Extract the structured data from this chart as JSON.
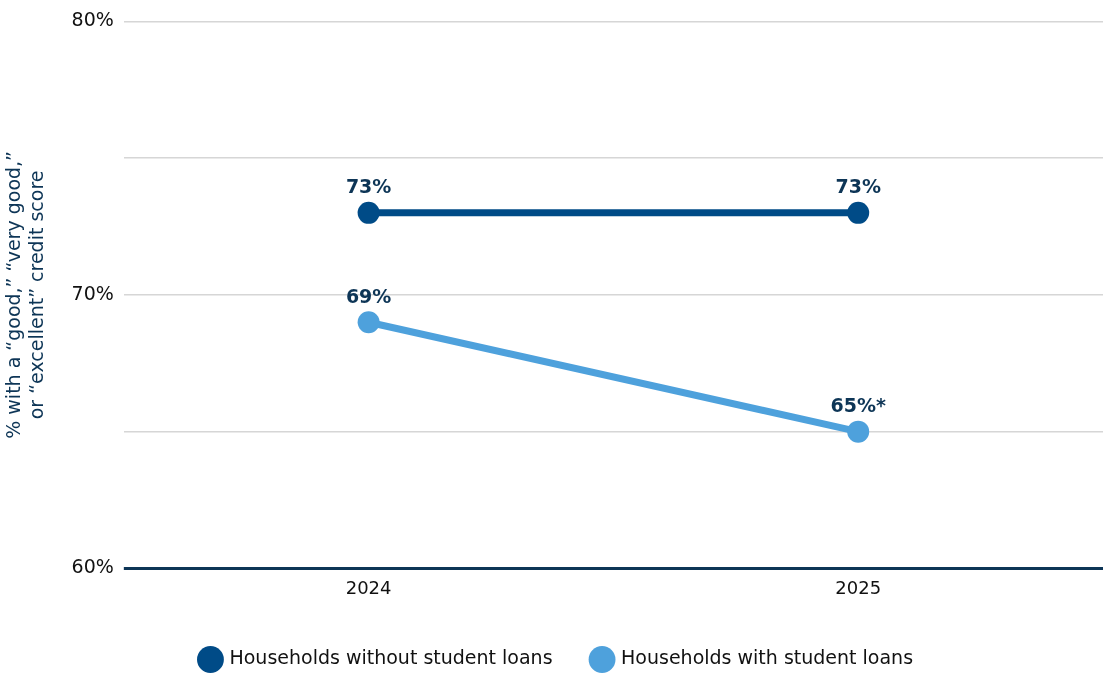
{
  "chart_data": {
    "type": "line",
    "ylabel": "% with a “good,” “very good,” or “excellent” credit score",
    "categories": [
      "2024",
      "2025"
    ],
    "series": [
      {
        "name": "Households without student loans",
        "color": "#004b87",
        "values": [
          73,
          73
        ],
        "value_labels": [
          "73%",
          "73%"
        ]
      },
      {
        "name": "Households with student loans",
        "color": "#4ea1dc",
        "values": [
          69,
          65
        ],
        "value_labels": [
          "69%",
          "65%*"
        ]
      }
    ],
    "ylim": [
      60,
      80
    ],
    "yticks": [
      {
        "value": 60,
        "label": "60%"
      },
      {
        "value": 65,
        "label": null
      },
      {
        "value": 70,
        "label": "70%"
      },
      {
        "value": 75,
        "label": null
      },
      {
        "value": 80,
        "label": "80%"
      }
    ],
    "grid": "y",
    "legend": "bottom",
    "marker": "circle",
    "line_style": "solid"
  }
}
